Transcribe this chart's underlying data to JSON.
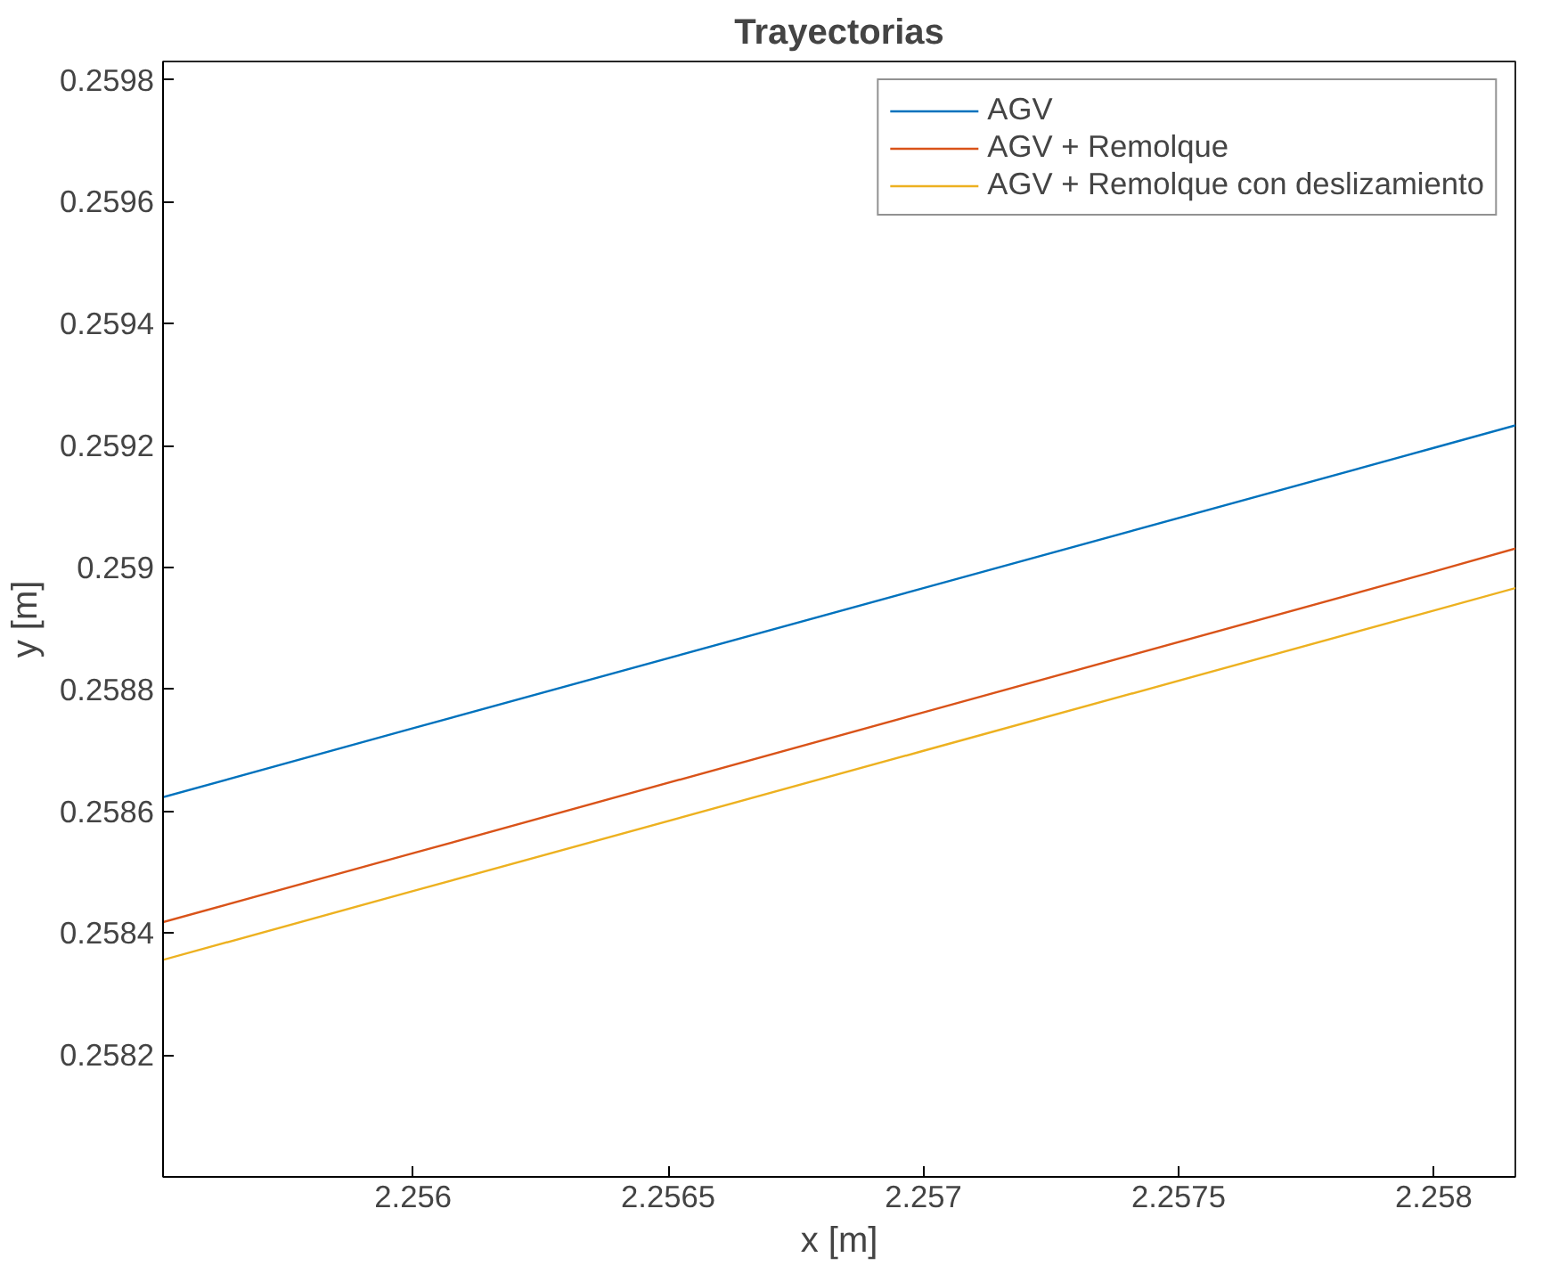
{
  "chart_data": {
    "type": "line",
    "title": "Trayectorias",
    "xlabel": "x [m]",
    "ylabel": "y [m]",
    "xlim": [
      2.25551,
      2.25816
    ],
    "ylim": [
      0.258,
      0.25983
    ],
    "xticks": [
      2.256,
      2.2565,
      2.257,
      2.2575,
      2.258
    ],
    "yticks": [
      0.2582,
      0.2584,
      0.2586,
      0.2588,
      0.259,
      0.2592,
      0.2594,
      0.2596,
      0.2598
    ],
    "grid": false,
    "legend": "top right",
    "marker": "none",
    "line_style": "solid",
    "series": [
      {
        "name": "AGV",
        "color": "#0072bd",
        "x": [
          2.25551,
          2.256,
          2.257,
          2.258,
          2.25816
        ],
        "values": [
          0.258623,
          0.258736,
          0.258966,
          0.259196,
          0.259233
        ]
      },
      {
        "name": "AGV + Remolque",
        "color": "#d95319",
        "x": [
          2.25551,
          2.256,
          2.257,
          2.258,
          2.25816
        ],
        "values": [
          0.258418,
          0.258531,
          0.258762,
          0.258993,
          0.259031
        ]
      },
      {
        "name": "AGV + Remolque con deslizamiento",
        "color": "#edb120",
        "x": [
          2.25551,
          2.256,
          2.257,
          2.258,
          2.25816
        ],
        "values": [
          0.258356,
          0.258469,
          0.258699,
          0.258929,
          0.258966
        ]
      }
    ]
  }
}
